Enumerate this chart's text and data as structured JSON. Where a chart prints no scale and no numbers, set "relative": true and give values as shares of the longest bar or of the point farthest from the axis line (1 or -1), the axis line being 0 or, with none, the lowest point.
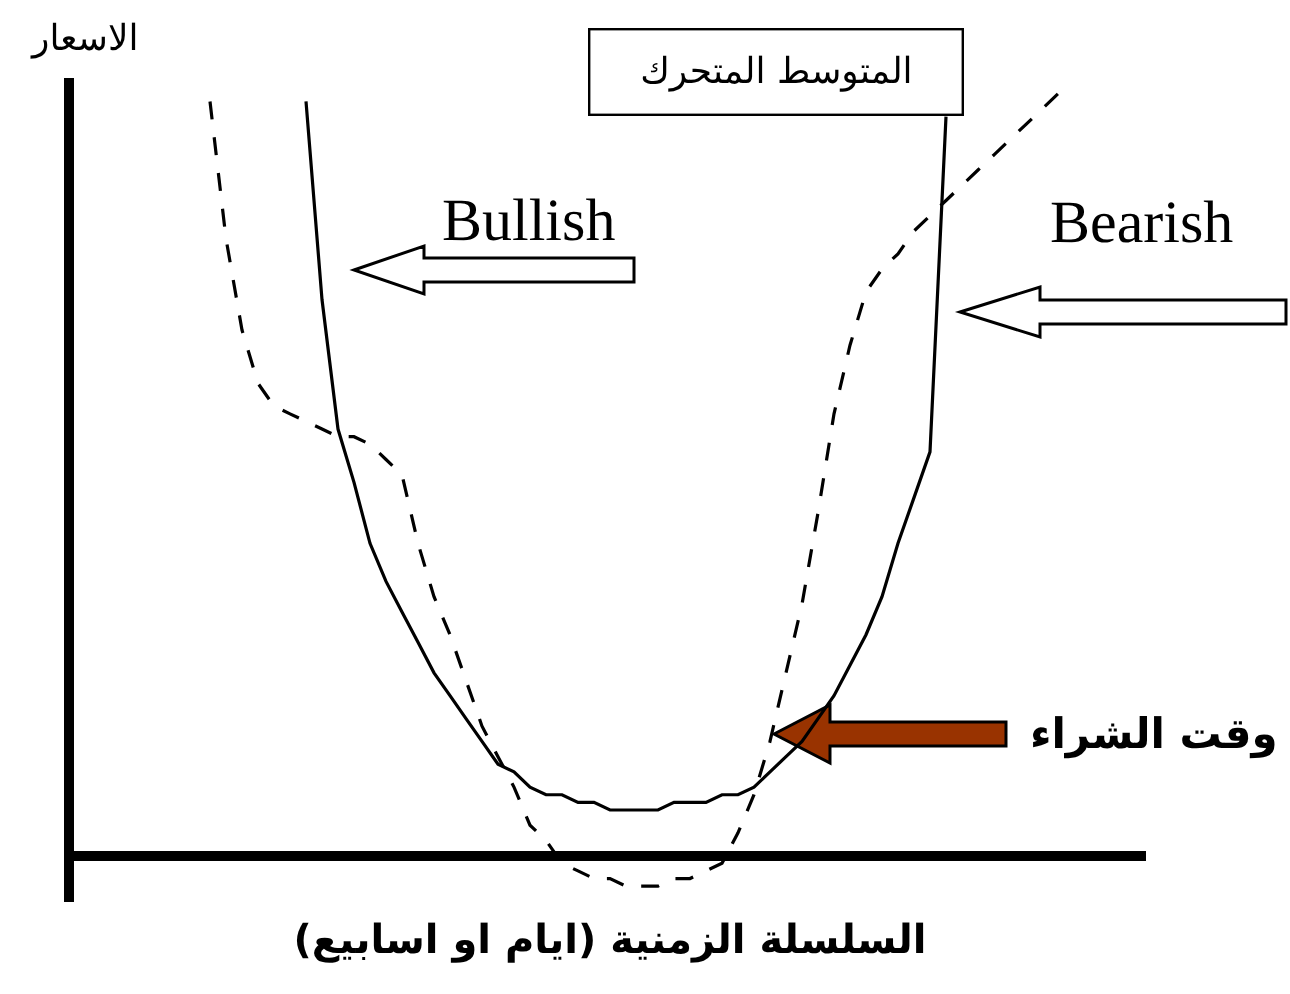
{
  "chart_data": {
    "type": "line",
    "relative": true,
    "xlabel": "السلسلة الزمنية (ايام او اسابيع)",
    "ylabel": "الاسعار",
    "legend": false,
    "annotations": [
      "Bullish",
      "Bearish",
      "وقت الشراء"
    ],
    "categories": [
      null,
      null,
      null,
      null,
      null,
      null,
      null,
      null,
      null,
      null,
      null,
      null,
      null,
      null,
      null,
      null,
      null,
      null,
      null,
      null,
      null,
      null,
      null,
      null,
      null,
      null,
      null,
      null,
      null,
      null,
      null,
      null,
      null,
      null,
      null,
      null,
      null,
      null,
      null,
      null,
      null,
      null,
      null,
      null,
      null,
      null,
      null,
      null,
      null,
      null,
      null,
      null,
      null,
      null,
      null,
      null,
      null,
      null,
      null,
      null,
      null,
      null,
      null,
      null,
      null,
      null,
      null
    ],
    "series": [
      {
        "name": "المتوسط المتحرك",
        "color": "#000000",
        "line_style": "solid",
        "values": [
          null,
          null,
          null,
          null,
          null,
          null,
          null,
          null,
          null,
          null,
          null,
          null,
          null,
          null,
          0.99,
          0.73,
          0.56,
          0.49,
          0.41,
          0.36,
          0.32,
          0.28,
          0.24,
          0.21,
          0.18,
          0.15,
          0.12,
          0.11,
          0.09,
          0.08,
          0.08,
          0.07,
          0.07,
          0.06,
          0.06,
          0.06,
          0.06,
          0.07,
          0.07,
          0.07,
          0.08,
          0.08,
          0.09,
          0.11,
          0.13,
          0.15,
          0.18,
          0.21,
          0.25,
          0.29,
          0.34,
          0.41,
          0.47,
          0.53,
          0.97,
          null,
          null,
          null,
          null,
          null,
          null,
          null,
          null,
          null,
          null,
          null,
          null
        ]
      },
      {
        "color": "#000000",
        "line_style": "dashed",
        "values": [
          null,
          null,
          null,
          null,
          null,
          null,
          null,
          null,
          0.99,
          0.81,
          0.69,
          0.62,
          0.59,
          0.58,
          0.57,
          0.56,
          0.55,
          0.55,
          0.54,
          0.52,
          0.5,
          0.41,
          0.34,
          0.29,
          0.23,
          0.17,
          0.13,
          0.09,
          0.04,
          0.02,
          -0.01,
          -0.02,
          -0.03,
          -0.03,
          -0.04,
          -0.04,
          -0.04,
          -0.03,
          -0.03,
          -0.02,
          -0.01,
          0.03,
          0.08,
          0.15,
          0.24,
          0.33,
          0.45,
          0.58,
          0.67,
          0.74,
          0.77,
          0.79,
          0.82,
          0.84,
          0.86,
          0.88,
          0.9,
          0.92,
          0.94,
          0.96,
          0.98,
          1.0,
          null,
          null,
          null,
          null,
          null
        ]
      }
    ]
  }
}
